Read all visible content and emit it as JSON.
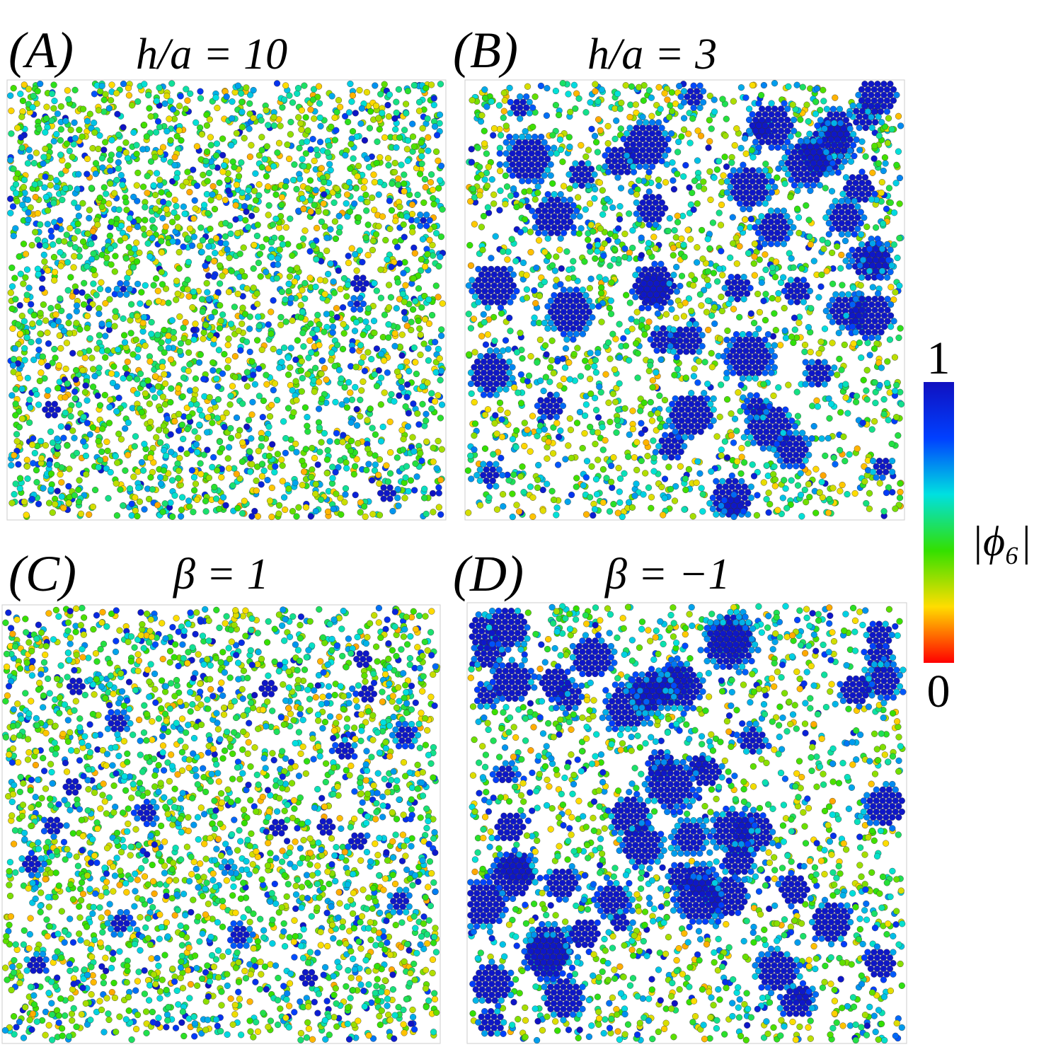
{
  "panels": [
    {
      "label": "(A)",
      "title": "h/a = 10"
    },
    {
      "label": "(B)",
      "title": "h/a = 3"
    },
    {
      "label": "(C)",
      "title": "β = 1"
    },
    {
      "label": "(D)",
      "title": "β = −1"
    }
  ],
  "colorbar": {
    "label": "|ϕ₆|",
    "lim": [
      0,
      1
    ],
    "ticks": [
      0,
      1
    ]
  }
}
